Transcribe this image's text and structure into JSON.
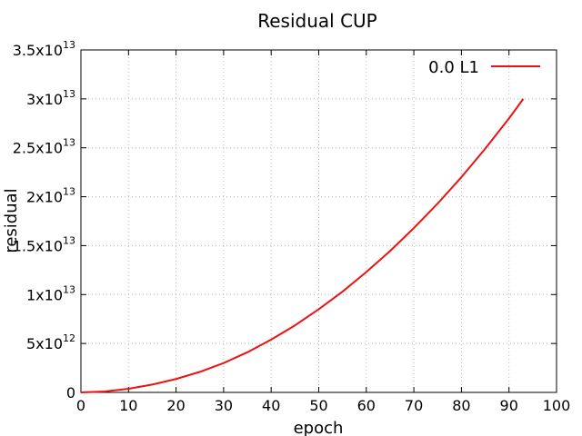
{
  "chart_data": {
    "type": "line",
    "title": "Residual CUP",
    "xlabel": "epoch",
    "ylabel": "residual",
    "xlim": [
      0,
      100
    ],
    "ylim": [
      0,
      35000000000000
    ],
    "x_ticks": [
      {
        "value": 0,
        "label": "0"
      },
      {
        "value": 10,
        "label": "10"
      },
      {
        "value": 20,
        "label": "20"
      },
      {
        "value": 30,
        "label": "30"
      },
      {
        "value": 40,
        "label": "40"
      },
      {
        "value": 50,
        "label": "50"
      },
      {
        "value": 60,
        "label": "60"
      },
      {
        "value": 70,
        "label": "70"
      },
      {
        "value": 80,
        "label": "80"
      },
      {
        "value": 90,
        "label": "90"
      },
      {
        "value": 100,
        "label": "100"
      }
    ],
    "y_ticks": [
      {
        "value": 0,
        "mantissa": "0",
        "exponent": ""
      },
      {
        "value": 5000000000000,
        "mantissa": "5x10",
        "exponent": "12"
      },
      {
        "value": 10000000000000,
        "mantissa": "1x10",
        "exponent": "13"
      },
      {
        "value": 15000000000000,
        "mantissa": "1.5x10",
        "exponent": "13"
      },
      {
        "value": 20000000000000,
        "mantissa": "2x10",
        "exponent": "13"
      },
      {
        "value": 25000000000000,
        "mantissa": "2.5x10",
        "exponent": "13"
      },
      {
        "value": 30000000000000,
        "mantissa": "3x10",
        "exponent": "13"
      },
      {
        "value": 35000000000000,
        "mantissa": "3.5x10",
        "exponent": "13"
      }
    ],
    "grid": true,
    "legend_position": "top-right",
    "series": [
      {
        "name": "0.0 L1",
        "color": "#ee1111",
        "x": [
          0,
          5,
          10,
          15,
          20,
          25,
          30,
          35,
          40,
          45,
          50,
          55,
          60,
          65,
          70,
          75,
          80,
          85,
          90,
          93
        ],
        "y": [
          0,
          90000000000,
          370000000000,
          800000000000,
          1370000000000,
          2100000000000,
          3000000000000,
          4100000000000,
          5400000000000,
          6850000000000,
          8500000000000,
          10300000000000,
          12300000000000,
          14450000000000,
          16800000000000,
          19300000000000,
          22000000000000,
          24900000000000,
          28000000000000,
          30000000000000
        ]
      }
    ]
  }
}
